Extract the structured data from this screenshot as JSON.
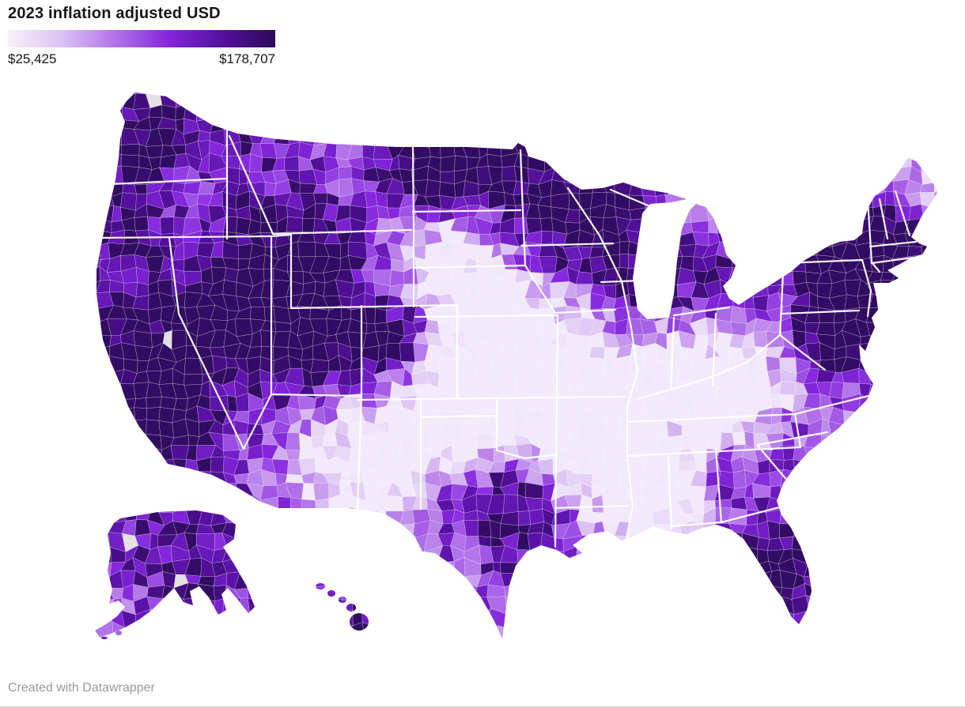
{
  "header": {
    "title": "2023 inflation adjusted USD"
  },
  "legend": {
    "min_label": "$25,425",
    "max_label": "$178,707",
    "gradient_stops": [
      "#f6f1fc",
      "#dcc2f3",
      "#b273e9",
      "#8426dd",
      "#55109f",
      "#2c0a58"
    ],
    "no_data_color": "#e3e1e4"
  },
  "map": {
    "type": "choropleth",
    "region": "United States counties",
    "state_border_color": "#ffffff"
  },
  "footer": {
    "credit": "Created with Datawrapper"
  }
}
